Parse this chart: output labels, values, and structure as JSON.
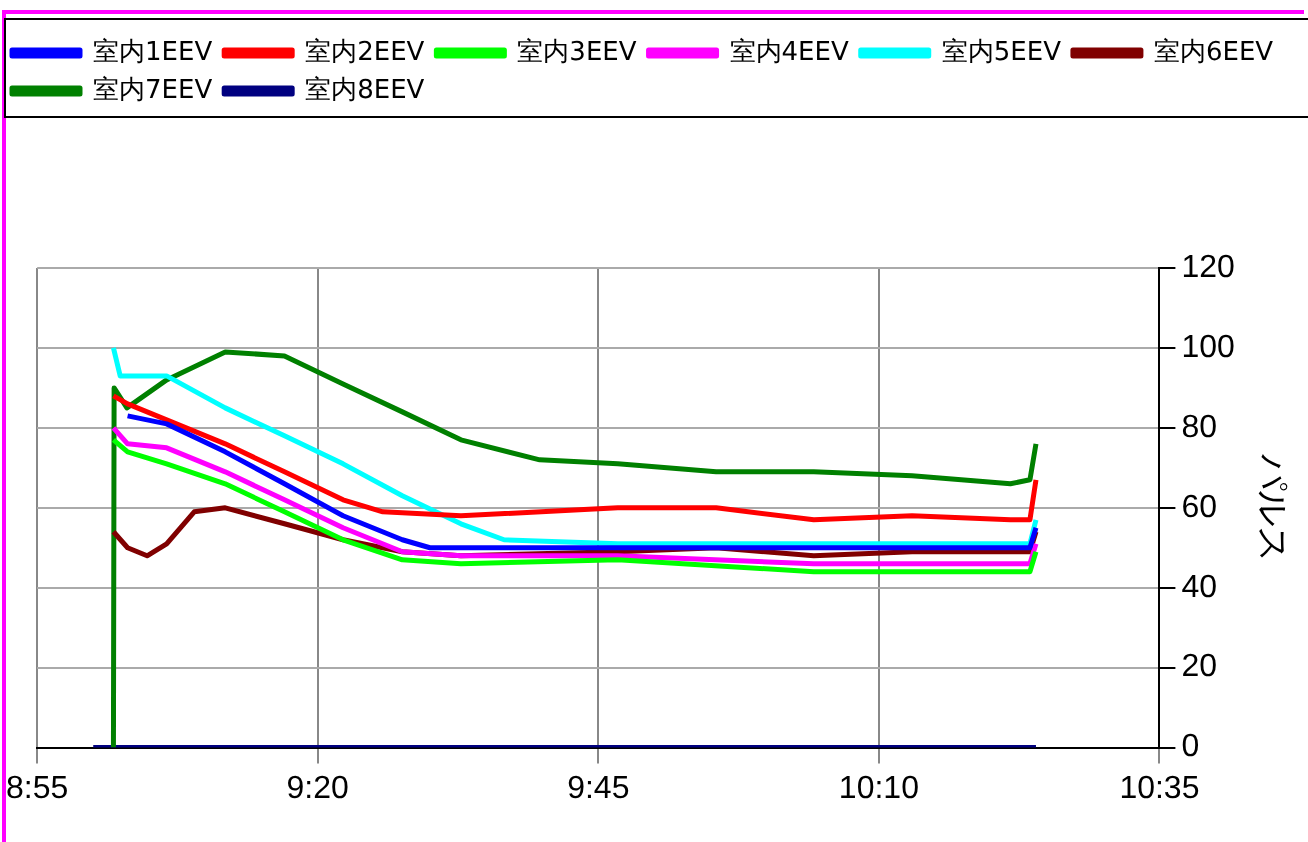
{
  "chart_data": {
    "type": "line",
    "ylabel": "パルス",
    "xlim": [
      8.9167,
      10.5833
    ],
    "xticks": [
      {
        "value": 8.9167,
        "label": "8:55"
      },
      {
        "value": 9.3333,
        "label": "9:20"
      },
      {
        "value": 9.75,
        "label": "9:45"
      },
      {
        "value": 10.1667,
        "label": "10:10"
      },
      {
        "value": 10.5833,
        "label": "10:35"
      }
    ],
    "ylim": [
      0,
      120
    ],
    "yticks": [
      0,
      20,
      40,
      60,
      80,
      100,
      120
    ],
    "grid": true,
    "legend": "top",
    "series": [
      {
        "name": "室内1EEV",
        "color": "#0000ff",
        "x": [
          9.051,
          9.109,
          9.196,
          9.284,
          9.371,
          9.459,
          9.5,
          9.779,
          10.07,
          10.362,
          10.391,
          10.4
        ],
        "values": [
          83,
          81,
          74,
          66,
          58,
          52,
          50,
          50,
          50,
          50,
          50,
          55
        ]
      },
      {
        "name": "室内2EEV",
        "color": "#ff0000",
        "x": [
          9.03,
          9.051,
          9.109,
          9.196,
          9.284,
          9.371,
          9.43,
          9.546,
          9.779,
          9.925,
          10.07,
          10.216,
          10.362,
          10.391,
          10.4
        ],
        "values": [
          88,
          86,
          82,
          76,
          69,
          62,
          59,
          58,
          60,
          60,
          57,
          58,
          57,
          57,
          67
        ]
      },
      {
        "name": "室内3EEV",
        "color": "#00ff00",
        "x": [
          9.03,
          9.051,
          9.109,
          9.196,
          9.284,
          9.371,
          9.459,
          9.546,
          9.779,
          10.07,
          10.362,
          10.391,
          10.4
        ],
        "values": [
          77,
          74,
          71,
          66,
          59,
          52,
          47,
          46,
          47,
          44,
          44,
          44,
          49
        ]
      },
      {
        "name": "室内4EEV",
        "color": "#ff00ff",
        "x": [
          9.03,
          9.051,
          9.109,
          9.196,
          9.284,
          9.371,
          9.459,
          9.546,
          9.779,
          10.07,
          10.362,
          10.391,
          10.4
        ],
        "values": [
          80,
          76,
          75,
          69,
          62,
          55,
          49,
          48,
          48,
          46,
          46,
          46,
          51
        ]
      },
      {
        "name": "室内5EEV",
        "color": "#00ffff",
        "x": [
          9.03,
          9.04,
          9.109,
          9.196,
          9.284,
          9.371,
          9.459,
          9.546,
          9.61,
          9.779,
          10.07,
          10.362,
          10.391,
          10.4
        ],
        "values": [
          100,
          93,
          93,
          85,
          78,
          71,
          63,
          56,
          52,
          51,
          51,
          51,
          51,
          57
        ]
      },
      {
        "name": "室内6EEV",
        "color": "#800000",
        "x": [
          9.03,
          9.051,
          9.08,
          9.109,
          9.15,
          9.196,
          9.284,
          9.371,
          9.459,
          9.546,
          9.779,
          9.925,
          10.07,
          10.216,
          10.362,
          10.391,
          10.4
        ],
        "values": [
          54,
          50,
          48,
          51,
          59,
          60,
          56,
          52,
          49,
          48,
          49,
          50,
          48,
          49,
          49,
          49,
          54
        ]
      },
      {
        "name": "室内7EEV",
        "color": "#008000",
        "x": [
          9.03,
          9.031,
          9.05,
          9.109,
          9.196,
          9.284,
          9.371,
          9.459,
          9.546,
          9.663,
          9.779,
          9.925,
          10.07,
          10.216,
          10.362,
          10.391,
          10.4
        ],
        "values": [
          0,
          90,
          85,
          92,
          99,
          98,
          91,
          84,
          77,
          72,
          71,
          69,
          69,
          68,
          66,
          67,
          76
        ]
      },
      {
        "name": "室内8EEV",
        "color": "#000080",
        "x": [
          9.0,
          10.4
        ],
        "values": [
          0,
          0
        ]
      }
    ]
  }
}
